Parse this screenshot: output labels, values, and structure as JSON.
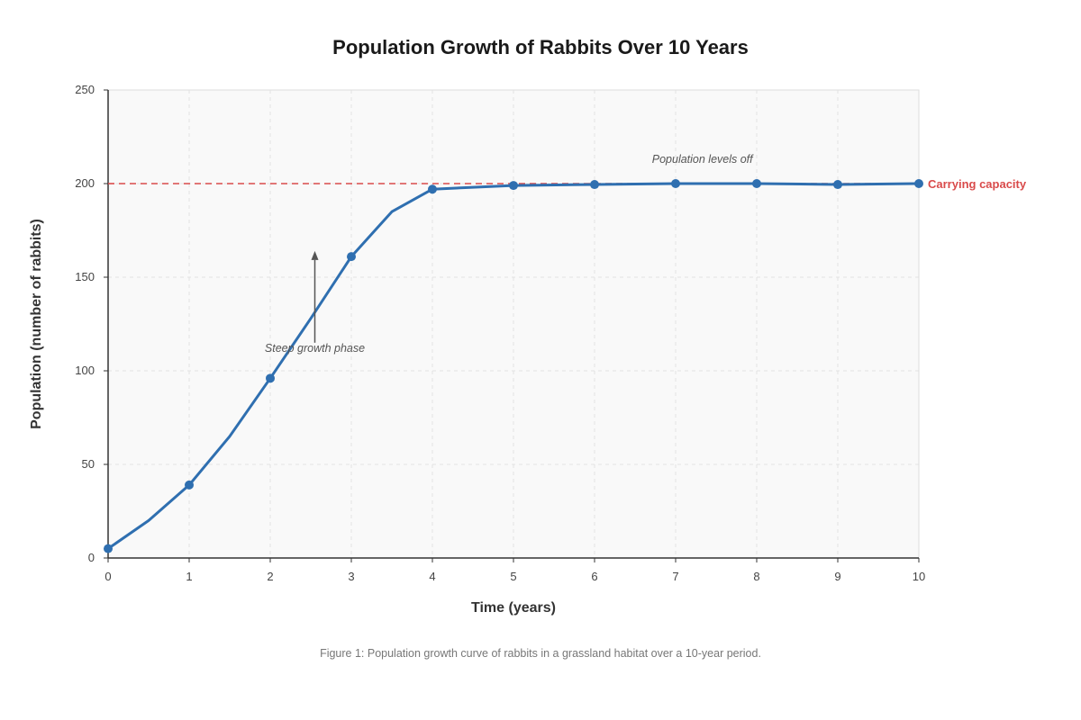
{
  "chart_data": {
    "type": "line",
    "title": "Population Growth of Rabbits Over 10 Years",
    "xlabel": "Time (years)",
    "ylabel": "Population (number of rabbits)",
    "xlim": [
      0,
      10
    ],
    "ylim": [
      0,
      250
    ],
    "x_ticks": [
      "0",
      "1",
      "2",
      "3",
      "4",
      "5",
      "6",
      "7",
      "8",
      "9",
      "10"
    ],
    "y_ticks": [
      "0",
      "50",
      "100",
      "150",
      "200",
      "250"
    ],
    "grid": true,
    "series": [
      {
        "color": "#2f6fb0",
        "x": [
          0,
          0.5,
          1,
          1.5,
          2,
          2.5,
          3,
          3.5,
          4,
          5,
          6,
          7,
          8,
          9,
          10
        ],
        "values": [
          5,
          20,
          39,
          65,
          96,
          128,
          161,
          185,
          197,
          199,
          199.5,
          200,
          200,
          199.5,
          200
        ],
        "markers_x": [
          0,
          1,
          2,
          3,
          4,
          5,
          6,
          7,
          8,
          9,
          10
        ]
      }
    ],
    "reference_line": {
      "y": 200,
      "label": "Carrying capacity",
      "color": "#d94a4a",
      "style": "dashed"
    },
    "annotations": [
      {
        "text": "Steep growth phase",
        "x": 2.55,
        "y": 110,
        "arrow_from": [
          2.55,
          115
        ],
        "arrow_to": [
          2.55,
          164
        ]
      },
      {
        "text": "Population levels off",
        "x": 7.33,
        "y": 211
      }
    ],
    "caption": "Figure 1: Population growth curve of rabbits in a grassland habitat over a 10-year period."
  }
}
